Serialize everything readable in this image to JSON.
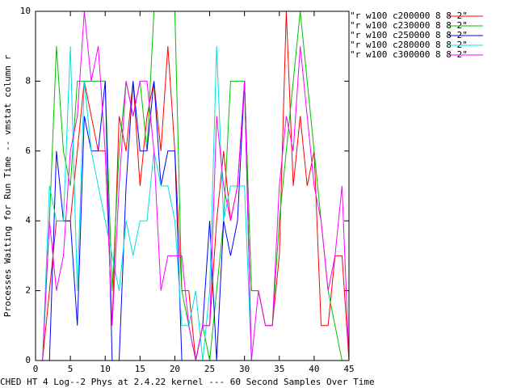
{
  "chart_data": {
    "type": "line",
    "x_label": "CHED HT 4 Log--2 Phys at 2.4.22 kernel --- 60 Second Samples Over Time",
    "y_label": "Processes Waiting for Run Time -- vmstat column r",
    "x": [
      0,
      1,
      2,
      3,
      4,
      5,
      6,
      7,
      8,
      9,
      10,
      11,
      12,
      13,
      14,
      15,
      16,
      17,
      18,
      19,
      20,
      21,
      22,
      23,
      24,
      25,
      26,
      27,
      28,
      29,
      30,
      31,
      32,
      33,
      34,
      35,
      36,
      37,
      38,
      39,
      40,
      41,
      42,
      43,
      44,
      45
    ],
    "series": [
      {
        "name": "\"r w100 c200000 8 8 2\"",
        "color": "#ff0000",
        "values": [
          0,
          0,
          2,
          4,
          4,
          4,
          6,
          8,
          7,
          6,
          6,
          1,
          7,
          6,
          8,
          5,
          7,
          8,
          6,
          9,
          6,
          2,
          2,
          0,
          1,
          1,
          4,
          6,
          4,
          5,
          8,
          2,
          2,
          1,
          1,
          3,
          10,
          5,
          7,
          5,
          6,
          1,
          1,
          3,
          3,
          0
        ]
      },
      {
        "name": "\"r w100 c230000 8 8 2\"",
        "color": "#00c000",
        "values": [
          0,
          0,
          4,
          9,
          6,
          5,
          8,
          8,
          8,
          8,
          8,
          2,
          6,
          8,
          7,
          8,
          6,
          10,
          10,
          10,
          10,
          2,
          1,
          0,
          1,
          0,
          2,
          4,
          8,
          8,
          8,
          2,
          2,
          1,
          1,
          4,
          6,
          8,
          10,
          8,
          6,
          4,
          2,
          1,
          0,
          0
        ]
      },
      {
        "name": "\"r w100 c250000 8 8 2\"",
        "color": "#0000ff",
        "values": [
          0,
          0,
          0,
          6,
          4,
          4,
          1,
          7,
          6,
          6,
          8,
          0,
          0,
          5,
          8,
          6,
          6,
          8,
          5,
          6,
          6,
          0,
          0,
          0,
          1,
          4,
          0,
          4,
          3,
          4,
          8,
          0,
          0,
          0,
          0,
          0,
          0,
          0,
          0,
          0,
          0,
          0,
          0,
          0,
          0,
          0
        ]
      },
      {
        "name": "\"r w100 c280000 8 8 2\"",
        "color": "#00e0e0",
        "values": [
          0,
          0,
          5,
          4,
          4,
          9,
          2,
          8,
          6,
          5,
          4,
          3,
          2,
          4,
          3,
          4,
          4,
          6,
          5,
          5,
          4,
          1,
          1,
          2,
          0,
          2,
          9,
          4,
          5,
          5,
          5,
          0,
          0,
          0,
          0,
          0,
          0,
          0,
          0,
          0,
          0,
          0,
          0,
          0,
          0,
          0
        ]
      },
      {
        "name": "\"r w100 c300000 8 8 2\"",
        "color": "#ff00ff",
        "values": [
          0,
          0,
          4,
          2,
          3,
          6,
          7,
          10,
          8,
          9,
          6,
          1,
          5,
          8,
          7,
          8,
          8,
          6,
          2,
          3,
          3,
          3,
          1,
          0,
          1,
          1,
          7,
          5,
          4,
          5,
          8,
          0,
          2,
          1,
          1,
          5,
          7,
          6,
          9,
          7,
          5,
          4,
          2,
          3,
          5,
          0
        ]
      }
    ],
    "xlim": [
      0,
      45
    ],
    "xticks": [
      0,
      5,
      10,
      15,
      20,
      25,
      30,
      35,
      40,
      45
    ],
    "ylim": [
      0,
      10
    ],
    "yticks": [
      0,
      2,
      4,
      6,
      8,
      10
    ],
    "grid": false,
    "legend": "right"
  }
}
